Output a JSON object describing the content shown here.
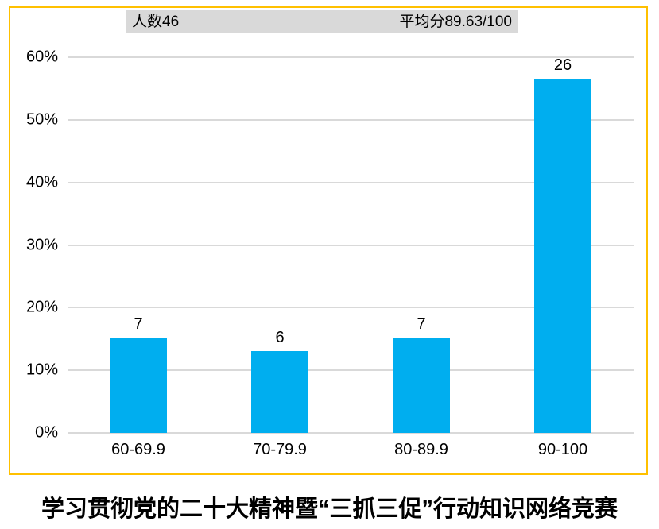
{
  "annotations": {
    "count": "人数46",
    "average": "平均分89.63/100"
  },
  "chart_data": {
    "type": "bar",
    "title": "学习贯彻党的二十大精神暨“三抓三促”行动知识网络竞赛",
    "categories": [
      "60-69.9",
      "70-79.9",
      "80-89.9",
      "90-100"
    ],
    "values": [
      7,
      6,
      7,
      26
    ],
    "bar_labels": [
      "7",
      "6",
      "7",
      "26"
    ],
    "total_people": 46,
    "average_score": "89.63/100",
    "percent_of_total": [
      15.2,
      13.0,
      15.2,
      56.5
    ],
    "xlabel": "",
    "ylabel": "",
    "y_axis": {
      "ticks": [
        "0%",
        "10%",
        "20%",
        "30%",
        "40%",
        "50%",
        "60%"
      ],
      "min": 0,
      "max": 60,
      "grid": true
    },
    "annotations": [
      "人数46",
      "平均分89.63/100"
    ],
    "legend_position": "none",
    "colors": {
      "bar": "#00AEEF",
      "gridline": "#D9D9D9",
      "annotation_bg": "#D9D9D9",
      "frame_border": "#FFC000",
      "text": "#000000"
    }
  }
}
